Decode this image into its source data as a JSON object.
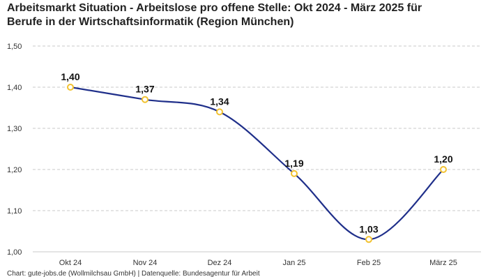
{
  "title": {
    "line1": "Arbeitsmarkt Situation - Arbeitslose pro offene Stelle: Okt 2024 - März 2025 für",
    "line2": "Berufe in der Wirtschaftsinformatik (Region München)"
  },
  "source": "Chart: gute-jobs.de (Wollmilchsau GmbH) | Datenquelle: Bundesagentur für Arbeit",
  "colors": {
    "line": "#1f2f8a",
    "marker_stroke": "#f2c230",
    "marker_fill": "#ffffff",
    "grid": "#c8c8c8"
  },
  "chart_data": {
    "type": "line",
    "title": "Arbeitsmarkt Situation - Arbeitslose pro offene Stelle: Okt 2024 - März 2025 für Berufe in der Wirtschaftsinformatik (Region München)",
    "xlabel": "",
    "ylabel": "",
    "categories": [
      "Okt 24",
      "Nov 24",
      "Dez 24",
      "Jan 25",
      "Feb 25",
      "März 25"
    ],
    "values": [
      1.4,
      1.37,
      1.34,
      1.19,
      1.03,
      1.2
    ],
    "value_labels": [
      "1,40",
      "1,37",
      "1,34",
      "1,19",
      "1,03",
      "1,20"
    ],
    "ylim": [
      1.0,
      1.5
    ],
    "yticks": [
      1.0,
      1.1,
      1.2,
      1.3,
      1.4,
      1.5
    ],
    "ytick_labels": [
      "1,00",
      "1,10",
      "1,20",
      "1,30",
      "1,40",
      "1,50"
    ],
    "grid": true,
    "legend": "none"
  }
}
